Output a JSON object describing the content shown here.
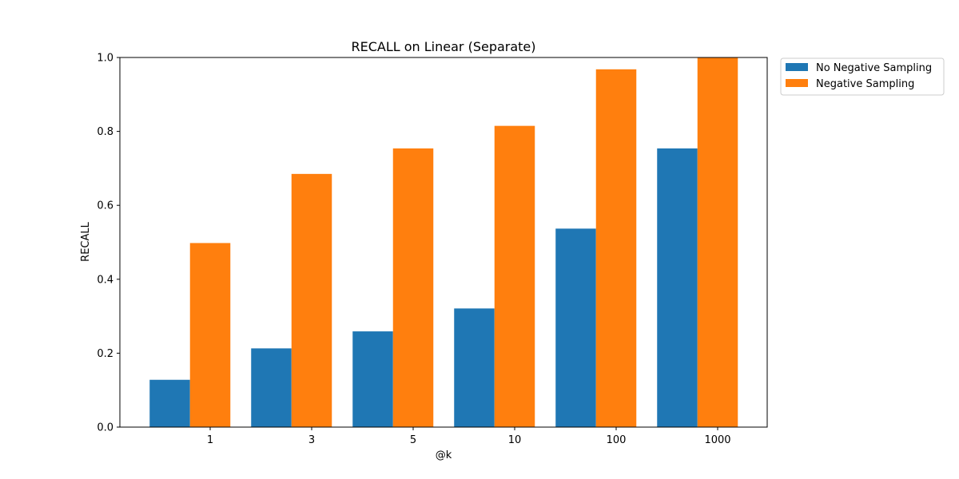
{
  "chart_data": {
    "type": "bar",
    "title": "RECALL on Linear (Separate)",
    "xlabel": "@k",
    "ylabel": "RECALL",
    "categories": [
      "1",
      "3",
      "5",
      "10",
      "100",
      "1000"
    ],
    "ylim": [
      0,
      1.0
    ],
    "yticks": [
      "0.0",
      "0.2",
      "0.4",
      "0.6",
      "0.8",
      "1.0"
    ],
    "grid": false,
    "legend_position": "outside top-right",
    "series": [
      {
        "name": "No Negative Sampling",
        "color": "#1f77b4",
        "values": [
          0.128,
          0.213,
          0.259,
          0.321,
          0.537,
          0.754
        ]
      },
      {
        "name": "Negative Sampling",
        "color": "#ff7f0e",
        "values": [
          0.498,
          0.685,
          0.754,
          0.815,
          0.968,
          1.0
        ]
      }
    ]
  }
}
